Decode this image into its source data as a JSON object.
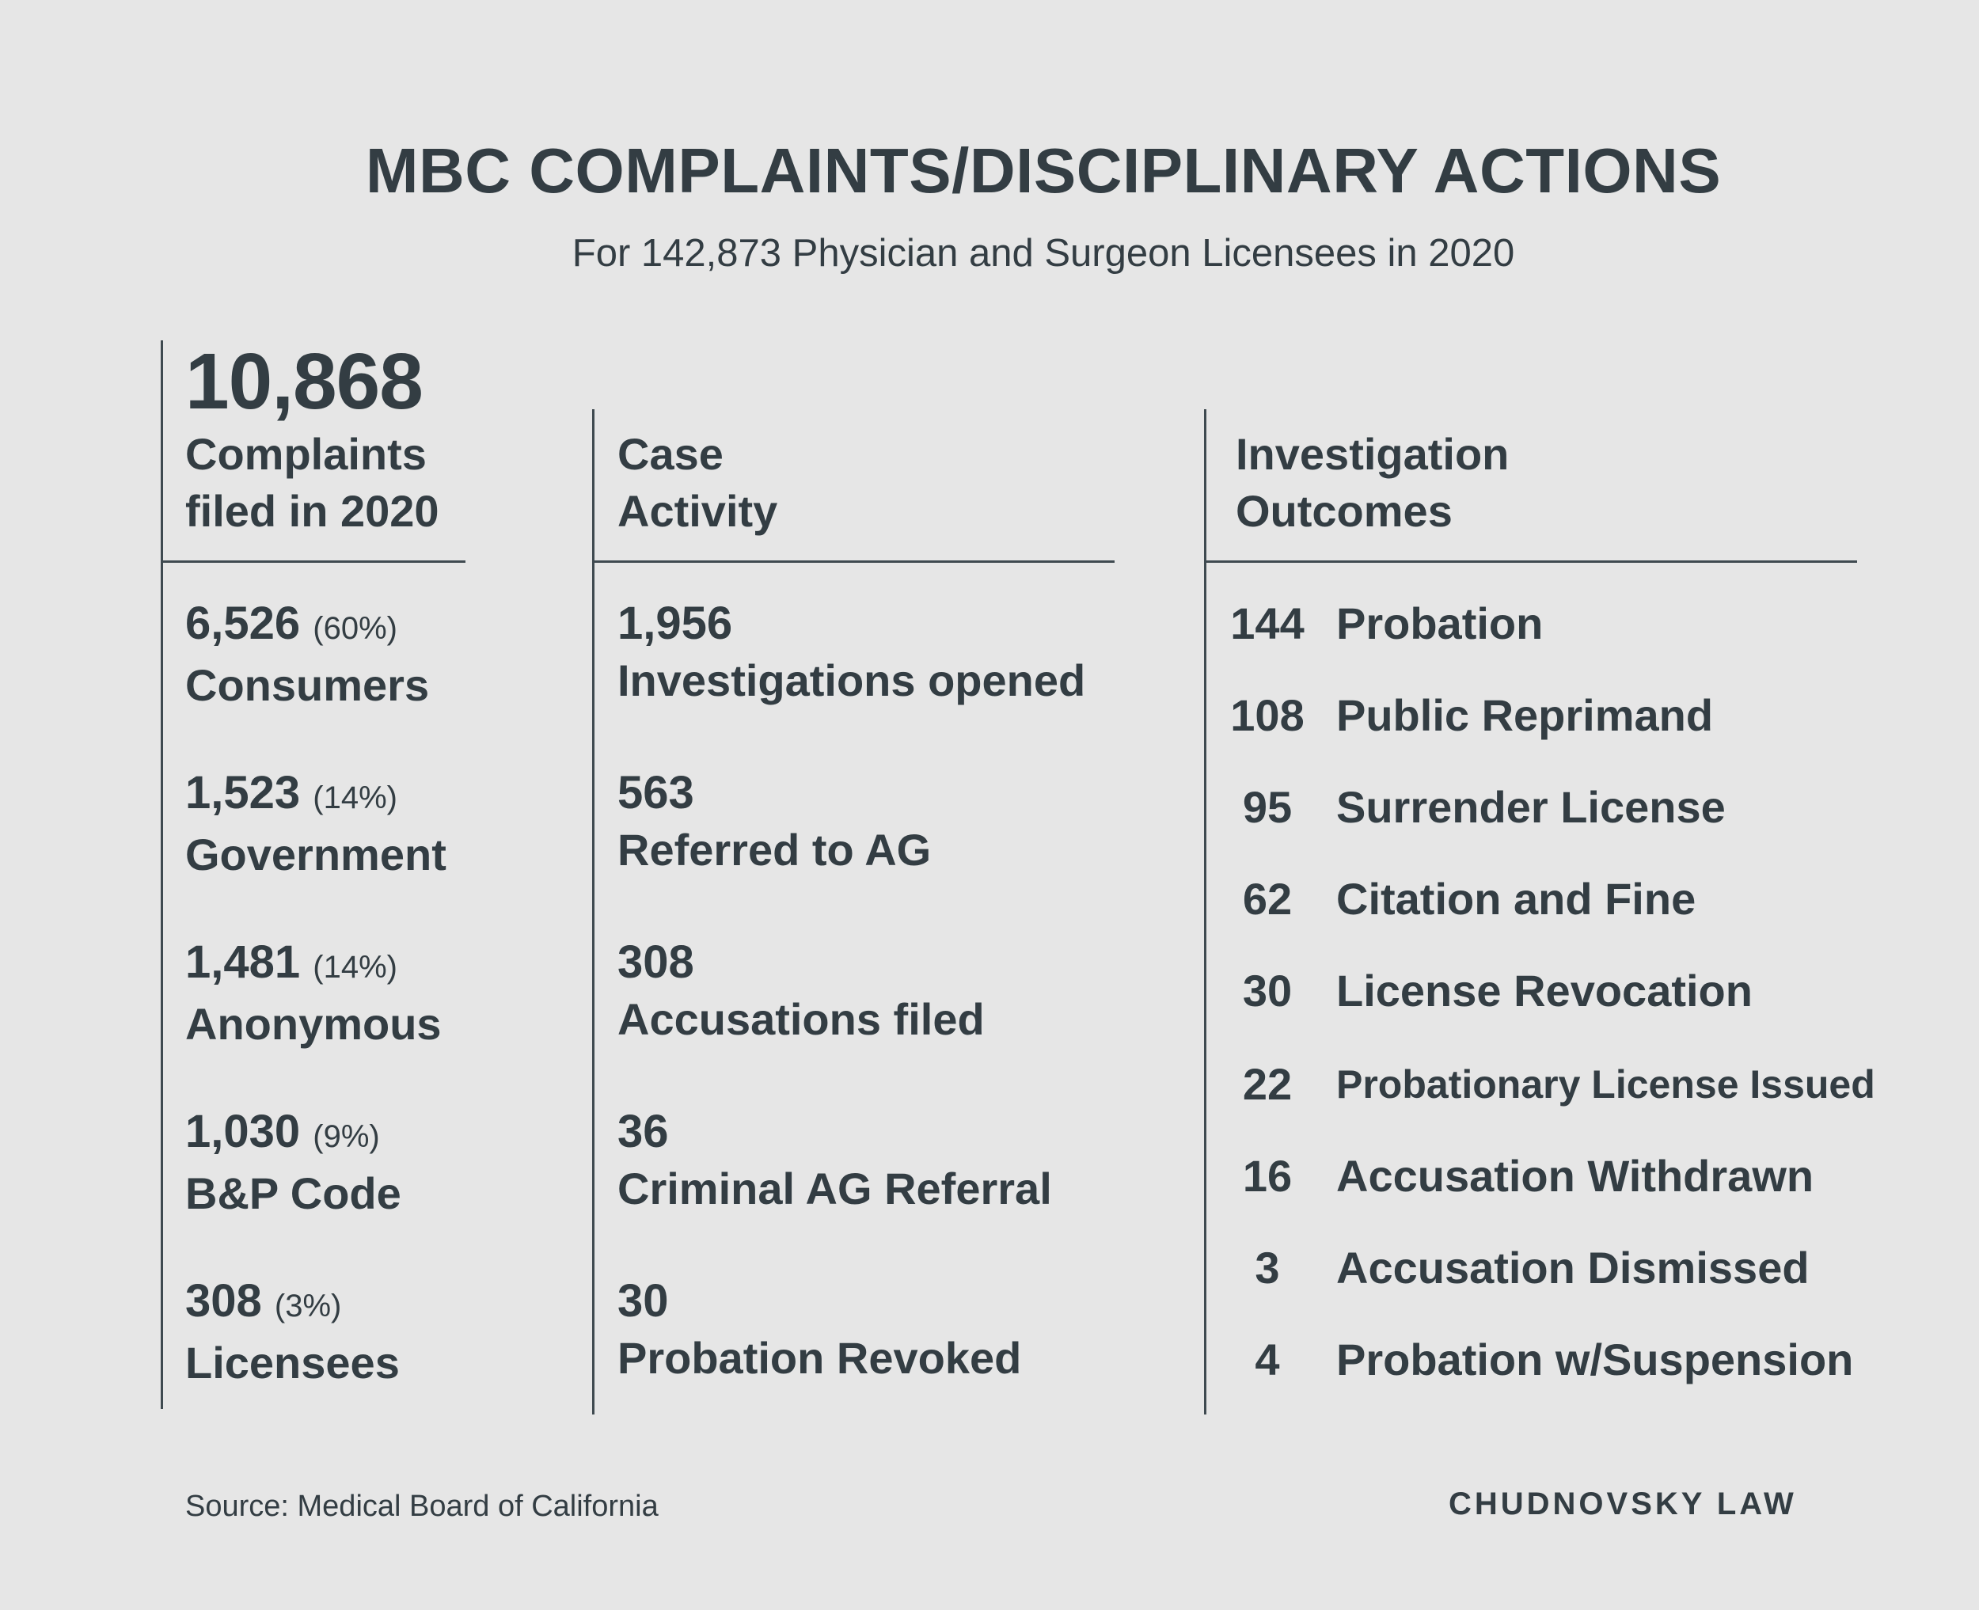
{
  "header": {
    "title": "MBC COMPLAINTS/DISCIPLINARY ACTIONS",
    "subtitle": "For 142,873 Physician and Surgeon Licensees in 2020"
  },
  "complaints": {
    "total": "10,868",
    "heading": "Complaints\nfiled in 2020",
    "items": [
      {
        "value": "6,526",
        "pct": "(60%)",
        "label": "Consumers"
      },
      {
        "value": "1,523",
        "pct": "(14%)",
        "label": "Government"
      },
      {
        "value": "1,481",
        "pct": "(14%)",
        "label": "Anonymous"
      },
      {
        "value": "1,030",
        "pct": "(9%)",
        "label": "B&P Code"
      },
      {
        "value": "308",
        "pct": "(3%)",
        "label": "Licensees"
      }
    ]
  },
  "case_activity": {
    "heading": "Case\nActivity",
    "items": [
      {
        "value": "1,956",
        "label": "Investigations opened"
      },
      {
        "value": "563",
        "label": "Referred to AG"
      },
      {
        "value": "308",
        "label": "Accusations filed"
      },
      {
        "value": "36",
        "label": "Criminal AG Referral"
      },
      {
        "value": "30",
        "label": "Probation Revoked"
      }
    ]
  },
  "outcomes": {
    "heading": "Investigation\nOutcomes",
    "items": [
      {
        "value": "144",
        "label": "Probation"
      },
      {
        "value": "108",
        "label": "Public Reprimand"
      },
      {
        "value": "95",
        "label": "Surrender License"
      },
      {
        "value": "62",
        "label": "Citation and Fine"
      },
      {
        "value": "30",
        "label": "License Revocation"
      },
      {
        "value": "22",
        "label": "Probationary License Issued"
      },
      {
        "value": "16",
        "label": "Accusation Withdrawn"
      },
      {
        "value": "3",
        "label": "Accusation Dismissed"
      },
      {
        "value": "4",
        "label": "Probation w/Suspension"
      }
    ]
  },
  "footer": {
    "source": "Source: Medical Board of California",
    "brand": "CHUDNOVSKY LAW"
  }
}
